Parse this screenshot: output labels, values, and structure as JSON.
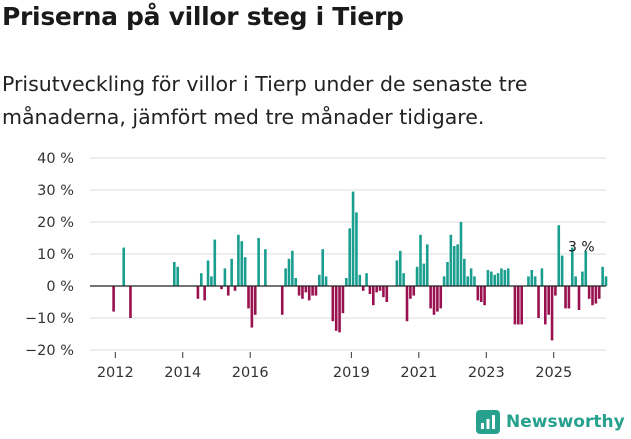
{
  "header": {
    "title": "Priserna på villor steg i Tierp",
    "subtitle": "Prisutveckling för villor i Tierp under de senaste tre månaderna, jämfört med tre månader tidigare."
  },
  "brand": {
    "name": "Newsworthy"
  },
  "colors": {
    "positive": "#1a9e8f",
    "negative": "#99114f",
    "grid": "#dddddd",
    "zero": "#222222",
    "brand": "#27a08e"
  },
  "chart_data": {
    "type": "bar",
    "title": "Priserna på villor steg i Tierp",
    "xlabel": "",
    "ylabel": "",
    "ylim": [
      -20,
      40
    ],
    "y_ticks": [
      40,
      30,
      20,
      10,
      0,
      -10,
      -20
    ],
    "y_tick_labels": [
      "40 %",
      "30 %",
      "20 %",
      "10 %",
      "0 %",
      "−10 %",
      "−20 %"
    ],
    "x_range": [
      2011.25,
      2026.55
    ],
    "x_ticks": [
      2012,
      2014,
      2016,
      2019,
      2021,
      2023,
      2025
    ],
    "x_tick_labels": [
      "2012",
      "2014",
      "2016",
      "2019",
      "2021",
      "2023",
      "2025"
    ],
    "annotation": {
      "text": "3 %",
      "x": 2025.84,
      "y": 3
    },
    "series": [
      {
        "name": "Prisutveckling",
        "points": [
          {
            "x": 2011.95,
            "y": -8
          },
          {
            "x": 2012.25,
            "y": 12
          },
          {
            "x": 2012.45,
            "y": -10
          },
          {
            "x": 2013.75,
            "y": 7.5
          },
          {
            "x": 2013.85,
            "y": 6
          },
          {
            "x": 2014.45,
            "y": -4
          },
          {
            "x": 2014.55,
            "y": 4
          },
          {
            "x": 2014.65,
            "y": -4.5
          },
          {
            "x": 2014.75,
            "y": 8
          },
          {
            "x": 2014.85,
            "y": 3
          },
          {
            "x": 2014.95,
            "y": 14.5
          },
          {
            "x": 2015.15,
            "y": -1
          },
          {
            "x": 2015.25,
            "y": 5.5
          },
          {
            "x": 2015.35,
            "y": -3
          },
          {
            "x": 2015.45,
            "y": 8.5
          },
          {
            "x": 2015.55,
            "y": -1.5
          },
          {
            "x": 2015.65,
            "y": 16
          },
          {
            "x": 2015.75,
            "y": 14
          },
          {
            "x": 2015.85,
            "y": 9
          },
          {
            "x": 2015.95,
            "y": -7
          },
          {
            "x": 2016.05,
            "y": -13
          },
          {
            "x": 2016.15,
            "y": -9
          },
          {
            "x": 2016.25,
            "y": 15
          },
          {
            "x": 2016.45,
            "y": 11.5
          },
          {
            "x": 2016.95,
            "y": -9
          },
          {
            "x": 2017.05,
            "y": 5.5
          },
          {
            "x": 2017.15,
            "y": 8.5
          },
          {
            "x": 2017.25,
            "y": 11
          },
          {
            "x": 2017.35,
            "y": 2.5
          },
          {
            "x": 2017.45,
            "y": -3
          },
          {
            "x": 2017.55,
            "y": -4
          },
          {
            "x": 2017.65,
            "y": -2
          },
          {
            "x": 2017.75,
            "y": -4.5
          },
          {
            "x": 2017.85,
            "y": -3
          },
          {
            "x": 2017.95,
            "y": -3
          },
          {
            "x": 2018.05,
            "y": 3.5
          },
          {
            "x": 2018.15,
            "y": 11.5
          },
          {
            "x": 2018.25,
            "y": 3
          },
          {
            "x": 2018.45,
            "y": -11
          },
          {
            "x": 2018.55,
            "y": -14
          },
          {
            "x": 2018.65,
            "y": -14.5
          },
          {
            "x": 2018.75,
            "y": -8.5
          },
          {
            "x": 2018.85,
            "y": 2.5
          },
          {
            "x": 2018.95,
            "y": 18
          },
          {
            "x": 2019.05,
            "y": 29.5
          },
          {
            "x": 2019.15,
            "y": 23
          },
          {
            "x": 2019.25,
            "y": 3.5
          },
          {
            "x": 2019.35,
            "y": -1.5
          },
          {
            "x": 2019.45,
            "y": 4
          },
          {
            "x": 2019.55,
            "y": -2.5
          },
          {
            "x": 2019.65,
            "y": -6
          },
          {
            "x": 2019.75,
            "y": -2
          },
          {
            "x": 2019.85,
            "y": -1.5
          },
          {
            "x": 2019.95,
            "y": -3.5
          },
          {
            "x": 2020.05,
            "y": -5
          },
          {
            "x": 2020.35,
            "y": 8
          },
          {
            "x": 2020.45,
            "y": 11
          },
          {
            "x": 2020.55,
            "y": 4
          },
          {
            "x": 2020.65,
            "y": -11
          },
          {
            "x": 2020.75,
            "y": -4
          },
          {
            "x": 2020.85,
            "y": -3
          },
          {
            "x": 2020.95,
            "y": 6
          },
          {
            "x": 2021.05,
            "y": 16
          },
          {
            "x": 2021.15,
            "y": 7
          },
          {
            "x": 2020.95,
            "y": 5
          },
          {
            "x": 2021.25,
            "y": 13
          },
          {
            "x": 2021.35,
            "y": -7
          },
          {
            "x": 2021.45,
            "y": -9
          },
          {
            "x": 2021.55,
            "y": -8
          },
          {
            "x": 2021.65,
            "y": -7
          },
          {
            "x": 2021.75,
            "y": 3
          },
          {
            "x": 2021.85,
            "y": 7.5
          },
          {
            "x": 2021.95,
            "y": 16
          },
          {
            "x": 2022.05,
            "y": 12.5
          },
          {
            "x": 2022.15,
            "y": 13
          },
          {
            "x": 2022.25,
            "y": 20
          },
          {
            "x": 2022.35,
            "y": 8.5
          },
          {
            "x": 2022.45,
            "y": 3
          },
          {
            "x": 2022.55,
            "y": 5.5
          },
          {
            "x": 2022.65,
            "y": 3
          },
          {
            "x": 2022.75,
            "y": -4.5
          },
          {
            "x": 2022.85,
            "y": -5
          },
          {
            "x": 2022.95,
            "y": -6
          },
          {
            "x": 2023.05,
            "y": 5
          },
          {
            "x": 2023.15,
            "y": 4.5
          },
          {
            "x": 2023.25,
            "y": 3.5
          },
          {
            "x": 2023.35,
            "y": 4
          },
          {
            "x": 2023.45,
            "y": 5.5
          },
          {
            "x": 2023.55,
            "y": 5
          },
          {
            "x": 2023.65,
            "y": 5.5
          },
          {
            "x": 2023.85,
            "y": -12
          },
          {
            "x": 2023.95,
            "y": -12
          },
          {
            "x": 2024.05,
            "y": -12
          },
          {
            "x": 2024.25,
            "y": 3
          },
          {
            "x": 2024.35,
            "y": 5
          },
          {
            "x": 2024.45,
            "y": 3
          },
          {
            "x": 2024.55,
            "y": -10
          },
          {
            "x": 2024.65,
            "y": 5.5
          },
          {
            "x": 2024.75,
            "y": -12
          },
          {
            "x": 2024.85,
            "y": -9
          },
          {
            "x": 2024.95,
            "y": -17
          },
          {
            "x": 2025.05,
            "y": -3
          },
          {
            "x": 2025.15,
            "y": 19
          },
          {
            "x": 2025.25,
            "y": 9.5
          },
          {
            "x": 2025.35,
            "y": -7
          },
          {
            "x": 2025.45,
            "y": -7
          },
          {
            "x": 2025.55,
            "y": 12
          },
          {
            "x": 2025.65,
            "y": 3
          },
          {
            "x": 2025.75,
            "y": -7.5
          },
          {
            "x": 2025.85,
            "y": 4.5
          },
          {
            "x": 2025.95,
            "y": 11
          },
          {
            "x": 2026.05,
            "y": -4
          },
          {
            "x": 2026.15,
            "y": -6
          },
          {
            "x": 2026.25,
            "y": -5.5
          },
          {
            "x": 2026.35,
            "y": -4
          },
          {
            "x": 2026.45,
            "y": 6
          },
          {
            "x": 2026.55,
            "y": 3
          }
        ]
      }
    ]
  }
}
